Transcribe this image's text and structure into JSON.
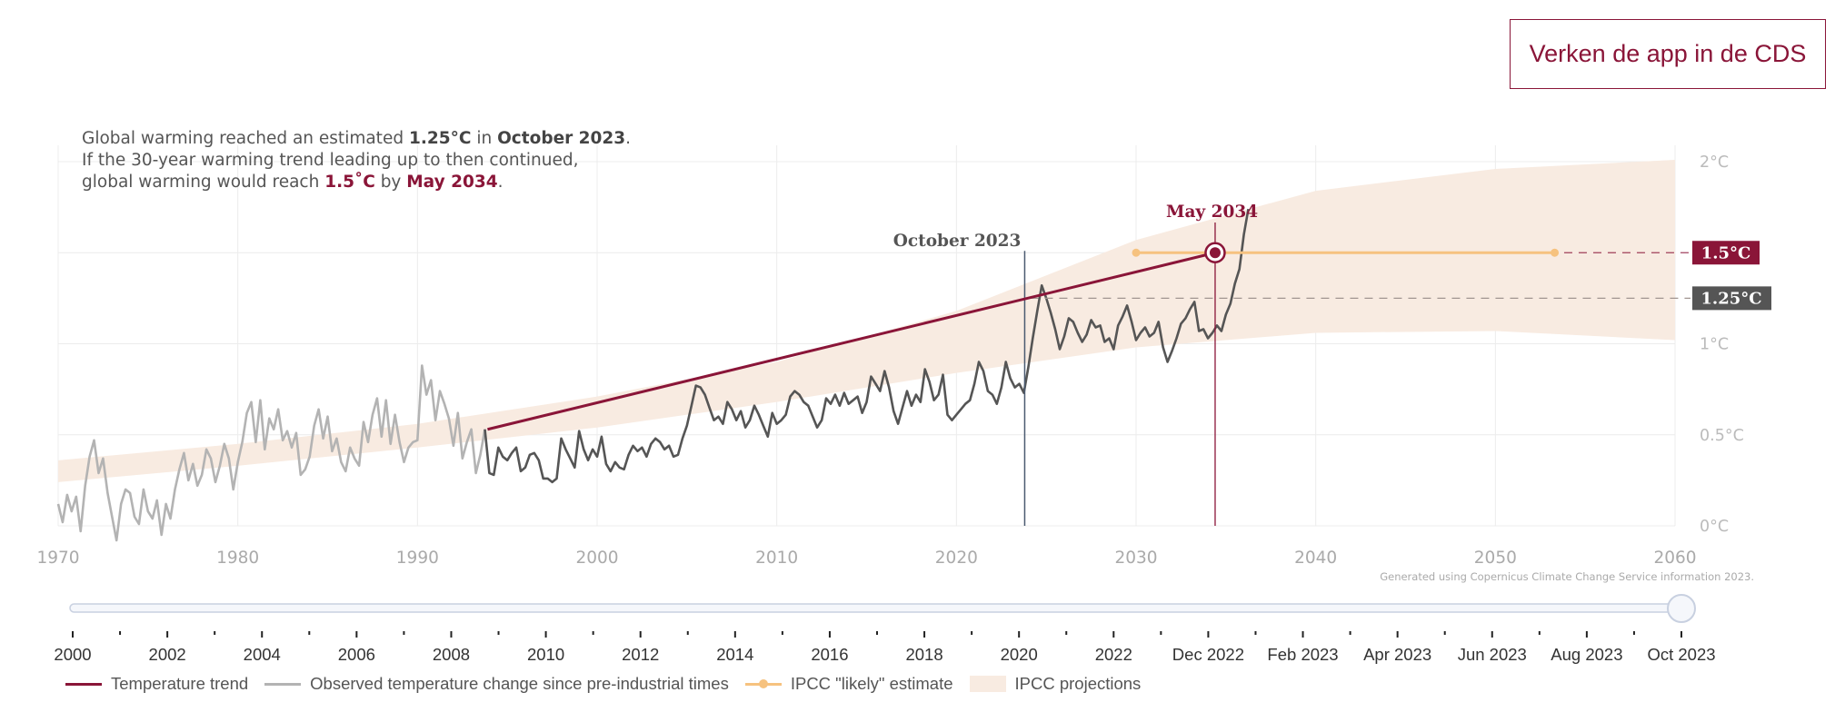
{
  "header": {
    "cds_button_label": "Verken de app in de CDS"
  },
  "summary": {
    "line1_prefix": "Global warming reached an estimated ",
    "current_value": "1.25°C",
    "line1_mid": " in ",
    "current_date": "October 2023",
    "line1_suffix": ".",
    "line2": "If the 30-year warming trend leading up to then continued,",
    "line3_prefix": "global warming would reach ",
    "target_value": "1.5˚C",
    "line3_mid": " by ",
    "target_date": "May 2034",
    "line3_suffix": "."
  },
  "credit": "Generated using Copernicus Climate Change Service information 2023.",
  "colors": {
    "trend": "#8a1538",
    "observed_recent": "#555555",
    "observed_early": "#b3b3b3",
    "ipcc_likely": "#f6c27f",
    "ipcc_band": "#f8ebe1",
    "current_marker": "#4a5a70",
    "badge_dark": "#555555"
  },
  "chart_data": {
    "type": "line",
    "xlim": [
      1970,
      2060
    ],
    "ylim": [
      0,
      2
    ],
    "x_ticks": [
      "1970",
      "1980",
      "1990",
      "2000",
      "2010",
      "2020",
      "2030",
      "2040",
      "2050",
      "2060"
    ],
    "x_tick_values": [
      1970,
      1980,
      1990,
      2000,
      2010,
      2020,
      2030,
      2040,
      2050,
      2060
    ],
    "y_ticks": [
      "0°C",
      "0.5°C",
      "1°C",
      "1.5°C",
      "2°C"
    ],
    "y_tick_values": [
      0,
      0.5,
      1,
      1.5,
      2
    ],
    "grid": true,
    "annotations": {
      "current_label": "October 2023",
      "current_x": 2023.8,
      "target_label": "May 2034",
      "target_x": 2034.4,
      "badge_target": "1.5°C",
      "badge_current": "1.25°C"
    },
    "series": [
      {
        "name": "Observed temperature change since pre-industrial times",
        "x_start": 1970.0,
        "x_step": 0.25,
        "values": [
          0.12,
          0.02,
          0.17,
          0.08,
          0.16,
          -0.03,
          0.22,
          0.38,
          0.47,
          0.29,
          0.37,
          0.18,
          0.05,
          -0.08,
          0.12,
          0.2,
          0.18,
          0.05,
          0.01,
          0.2,
          0.08,
          0.04,
          0.14,
          -0.05,
          0.12,
          0.04,
          0.2,
          0.31,
          0.4,
          0.25,
          0.34,
          0.22,
          0.28,
          0.42,
          0.37,
          0.24,
          0.33,
          0.45,
          0.37,
          0.2,
          0.35,
          0.46,
          0.62,
          0.68,
          0.46,
          0.69,
          0.42,
          0.59,
          0.53,
          0.64,
          0.47,
          0.52,
          0.43,
          0.51,
          0.28,
          0.31,
          0.38,
          0.55,
          0.64,
          0.48,
          0.6,
          0.41,
          0.48,
          0.35,
          0.3,
          0.43,
          0.37,
          0.33,
          0.57,
          0.46,
          0.61,
          0.7,
          0.49,
          0.69,
          0.45,
          0.61,
          0.46,
          0.35,
          0.43,
          0.46,
          0.47,
          0.88,
          0.72,
          0.8,
          0.58,
          0.74,
          0.67,
          0.59,
          0.44,
          0.62,
          0.37,
          0.46,
          0.53,
          0.29,
          0.39,
          0.53,
          0.29,
          0.28,
          0.43,
          0.38,
          0.36,
          0.4,
          0.43,
          0.3,
          0.32,
          0.39,
          0.4,
          0.36,
          0.26,
          0.26,
          0.24,
          0.26,
          0.48,
          0.42,
          0.37,
          0.32,
          0.52,
          0.42,
          0.36,
          0.42,
          0.38,
          0.49,
          0.34,
          0.3,
          0.35,
          0.32,
          0.31,
          0.39,
          0.44,
          0.41,
          0.43,
          0.38,
          0.45,
          0.48,
          0.46,
          0.42,
          0.44,
          0.38,
          0.39,
          0.48,
          0.55,
          0.66,
          0.77,
          0.76,
          0.72,
          0.65,
          0.58,
          0.6,
          0.56,
          0.68,
          0.64,
          0.58,
          0.63,
          0.54,
          0.58,
          0.66,
          0.61,
          0.55,
          0.49,
          0.62,
          0.56,
          0.58,
          0.61,
          0.71,
          0.74,
          0.72,
          0.68,
          0.66,
          0.6,
          0.54,
          0.58,
          0.7,
          0.67,
          0.72,
          0.66,
          0.73,
          0.67,
          0.69,
          0.71,
          0.62,
          0.68,
          0.82,
          0.78,
          0.74,
          0.85,
          0.76,
          0.63,
          0.56,
          0.65,
          0.74,
          0.66,
          0.72,
          0.68,
          0.86,
          0.79,
          0.69,
          0.72,
          0.83,
          0.61,
          0.58,
          0.61,
          0.64,
          0.67,
          0.69,
          0.78,
          0.9,
          0.85,
          0.74,
          0.72,
          0.67,
          0.76,
          0.9,
          0.81,
          0.76,
          0.78,
          0.73,
          0.87,
          1.03,
          1.18,
          1.32,
          1.25,
          1.17,
          1.08,
          0.97,
          1.04,
          1.14,
          1.12,
          1.06,
          1.01,
          1.05,
          1.13,
          1.09,
          1.1,
          1.01,
          1.03,
          0.97,
          1.1,
          1.15,
          1.21,
          1.12,
          1.02,
          1.06,
          1.09,
          1.04,
          1.06,
          1.12,
          0.98,
          0.9,
          0.96,
          1.03,
          1.11,
          1.14,
          1.19,
          1.23,
          1.07,
          1.08,
          1.03,
          1.06,
          1.1,
          1.07,
          1.16,
          1.22,
          1.33,
          1.41,
          1.6,
          1.74
        ],
        "split_x": 1993.75
      },
      {
        "name": "Temperature trend",
        "x": [
          1993.9,
          2023.8,
          2034.4
        ],
        "values": [
          0.53,
          1.25,
          1.5
        ]
      },
      {
        "name": "IPCC \"likely\" estimate",
        "x": [
          2030.0,
          2053.3
        ],
        "values": [
          1.5,
          1.5
        ]
      },
      {
        "name": "IPCC projections",
        "x": [
          1970,
          1980,
          1990,
          2000,
          2010,
          2020,
          2030,
          2040,
          2050,
          2060
        ],
        "lower": [
          0.24,
          0.33,
          0.43,
          0.54,
          0.68,
          0.84,
          0.98,
          1.06,
          1.07,
          1.02
        ],
        "upper": [
          0.36,
          0.45,
          0.56,
          0.71,
          0.9,
          1.18,
          1.57,
          1.84,
          1.96,
          2.01
        ]
      }
    ]
  },
  "timeline": {
    "labels": [
      "2000",
      "2002",
      "2004",
      "2006",
      "2008",
      "2010",
      "2012",
      "2014",
      "2016",
      "2018",
      "2020",
      "2022",
      "Dec 2022",
      "Feb 2023",
      "Apr 2023",
      "Jun 2023",
      "Aug 2023",
      "Oct 2023"
    ],
    "selected": "Oct 2023"
  },
  "legend": {
    "items": [
      {
        "label": "Temperature trend",
        "color": "#8a1538"
      },
      {
        "label": "Observed temperature change since pre-industrial times",
        "color": "#b3b3b3"
      },
      {
        "label": "IPCC \"likely\" estimate",
        "color": "#f6c27f"
      },
      {
        "label": "IPCC projections",
        "color": "#f8ebe1"
      }
    ]
  }
}
